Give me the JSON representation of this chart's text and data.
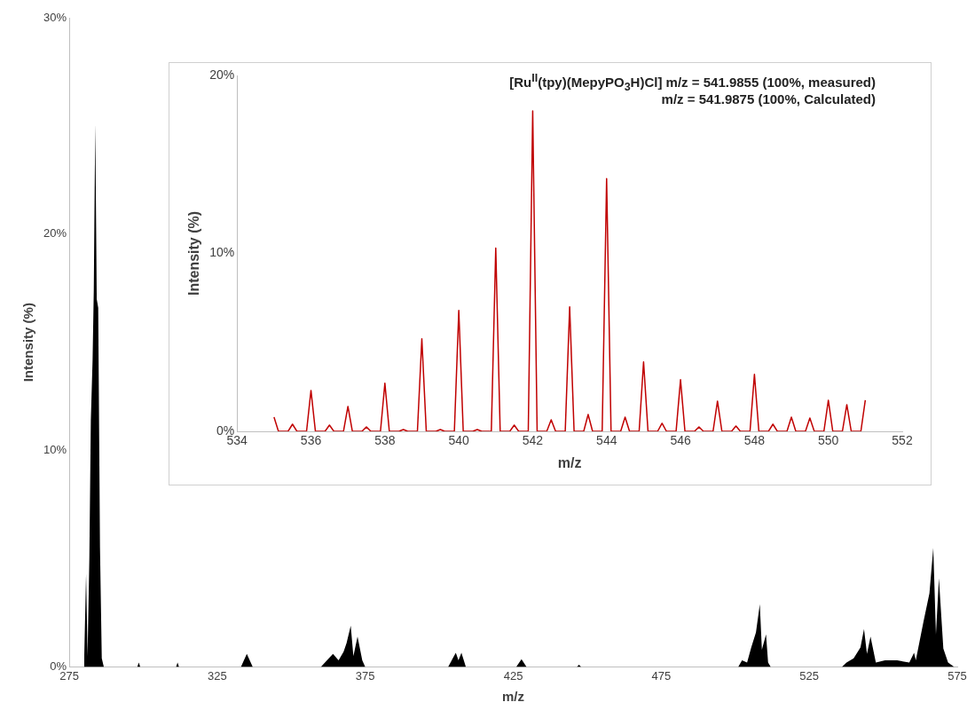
{
  "chart_data": [
    {
      "type": "area",
      "xlabel": "m/z",
      "ylabel": "Intensity (%)",
      "xlim": [
        275,
        575
      ],
      "xticks": [
        275,
        325,
        375,
        425,
        475,
        525,
        575
      ],
      "ylim": [
        0,
        30
      ],
      "yticks": [
        {
          "value": 0,
          "label": "0%"
        },
        {
          "value": 10,
          "label": "10%"
        },
        {
          "value": 20,
          "label": "20%"
        },
        {
          "value": 30,
          "label": "30%"
        }
      ],
      "grid": false,
      "legend": false,
      "marker": "none",
      "series": [
        {
          "color": "#000000",
          "x": [
            280.0,
            280.7,
            281.2,
            281.8,
            282.3,
            282.9,
            283.3,
            283.8,
            284.3,
            284.8,
            285.4,
            286.0,
            286.7,
            298.0,
            298.5,
            299.0,
            311.1,
            311.6,
            312.1,
            333.0,
            335.0,
            337.0,
            360.0,
            364.1,
            366.0,
            367.7,
            368.7,
            370.1,
            371.0,
            372.4,
            374.0,
            375.0,
            403.0,
            405.6,
            406.5,
            407.5,
            409.0,
            426.0,
            427.8,
            429.5,
            446.5,
            447.2,
            448.0,
            501.0,
            502.3,
            504.0,
            505.4,
            507.0,
            508.3,
            509.0,
            510.4,
            511.1,
            512.0,
            536.0,
            537.6,
            540.0,
            542.3,
            543.5,
            544.5,
            545.7,
            547.5,
            550.6,
            554.7,
            558.8,
            560.4,
            561.0,
            563.6,
            565.6,
            566.9,
            567.8,
            568.8,
            570.3,
            571.9,
            574.0,
            575.0
          ],
          "values": [
            0,
            4.3,
            0.5,
            5,
            11.4,
            14.2,
            17.4,
            25.1,
            17,
            16.6,
            5.5,
            0.4,
            0,
            0,
            0.2,
            0,
            0,
            0.2,
            0,
            0,
            0.6,
            0,
            0,
            0.6,
            0.3,
            0.7,
            1.1,
            1.9,
            0.5,
            1.4,
            0.3,
            0,
            0,
            0.65,
            0.3,
            0.65,
            0,
            0,
            0.35,
            0,
            0,
            0.1,
            0,
            0,
            0.3,
            0.2,
            0.9,
            1.6,
            2.9,
            0.8,
            1.5,
            0.2,
            0,
            0,
            0.2,
            0.4,
            0.9,
            1.75,
            0.6,
            1.4,
            0.2,
            0.3,
            0.3,
            0.2,
            0.65,
            0.3,
            2.1,
            3.4,
            5.5,
            1.5,
            4.1,
            0.85,
            0.2,
            0,
            0
          ]
        }
      ]
    },
    {
      "type": "line",
      "xlabel": "m/z",
      "ylabel": "Intensity (%)",
      "xlim": [
        534,
        552
      ],
      "xticks": [
        534,
        536,
        538,
        540,
        542,
        544,
        546,
        548,
        550,
        552
      ],
      "ylim": [
        0,
        20
      ],
      "yticks": [
        {
          "value": 0,
          "label": "0%"
        },
        {
          "value": 10,
          "label": "10%"
        },
        {
          "value": 20,
          "label": "20%"
        }
      ],
      "grid": false,
      "legend": false,
      "marker": "none",
      "annotations": [
        "[Ru$^{II}$(tpy)(MepyPO$_{3}$H)Cl]  m/z = 541.9855 (100%, measured)",
        "m/z = 541.9875 (100%, Calculated)"
      ],
      "series": [
        {
          "color": "#c00000",
          "x": [
            535,
            535.12,
            535.38,
            535.5,
            535.62,
            535.88,
            536,
            536.12,
            536.38,
            536.5,
            536.62,
            536.88,
            537,
            537.12,
            537.38,
            537.5,
            537.62,
            537.88,
            538,
            538.12,
            538.38,
            538.5,
            538.62,
            538.88,
            539,
            539.12,
            539.38,
            539.5,
            539.62,
            539.88,
            540,
            540.12,
            540.38,
            540.5,
            540.62,
            540.88,
            541,
            541.12,
            541.38,
            541.5,
            541.62,
            541.88,
            542,
            542.12,
            542.38,
            542.5,
            542.62,
            542.88,
            543,
            543.12,
            543.38,
            543.5,
            543.62,
            543.88,
            544,
            544.12,
            544.38,
            544.5,
            544.62,
            544.88,
            545,
            545.12,
            545.38,
            545.5,
            545.62,
            545.88,
            546,
            546.12,
            546.38,
            546.5,
            546.62,
            546.88,
            547,
            547.12,
            547.38,
            547.5,
            547.62,
            547.88,
            548,
            548.12,
            548.38,
            548.5,
            548.62,
            548.88,
            549,
            549.12,
            549.38,
            549.5,
            549.62,
            549.88,
            550,
            550.12,
            550.38,
            550.5,
            550.62,
            550.88,
            551
          ],
          "values": [
            0.8,
            0,
            0,
            0.4,
            0,
            0,
            2.3,
            0,
            0,
            0.35,
            0,
            0,
            1.4,
            0,
            0,
            0.25,
            0,
            0,
            2.7,
            0,
            0,
            0.1,
            0,
            0,
            5.2,
            0,
            0,
            0.1,
            0,
            0,
            6.8,
            0,
            0,
            0.1,
            0,
            0,
            10.3,
            0,
            0,
            0.35,
            0,
            0,
            18.0,
            0,
            0,
            0.65,
            0,
            0,
            7.0,
            0,
            0,
            0.95,
            0,
            0,
            14.2,
            0,
            0,
            0.8,
            0,
            0,
            3.9,
            0,
            0,
            0.45,
            0,
            0,
            2.9,
            0,
            0,
            0.25,
            0,
            0,
            1.7,
            0,
            0,
            0.3,
            0,
            0,
            3.2,
            0,
            0,
            0.4,
            0,
            0,
            0.8,
            0,
            0,
            0.75,
            0,
            0,
            1.75,
            0,
            0,
            1.5,
            0,
            0,
            1.75
          ]
        }
      ]
    }
  ]
}
